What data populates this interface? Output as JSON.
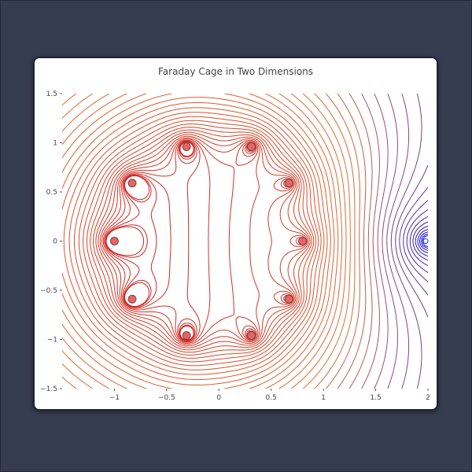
{
  "chart_data": {
    "type": "contour",
    "title": "Faraday Cage in Two Dimensions",
    "xlabel": "",
    "ylabel": "",
    "xlim": [
      -1.5,
      2.0
    ],
    "ylim": [
      -1.5,
      1.5
    ],
    "x_ticks": [
      -1,
      -0.5,
      0,
      0.5,
      1,
      1.5,
      2
    ],
    "x_tick_labels": [
      "−1",
      "−0.5",
      "0",
      "0.5",
      "1",
      "1.5",
      "2"
    ],
    "y_ticks": [
      -1.5,
      -1,
      -0.5,
      0,
      0.5,
      1,
      1.5
    ],
    "y_tick_labels": [
      "−1.5",
      "−1",
      "−0.5",
      "0",
      "0.5",
      "1",
      "1.5"
    ],
    "grid": false,
    "disks": {
      "count": 12,
      "ring_radius": 1.0,
      "ring_center": [
        -0.12,
        0.0
      ],
      "marker_color": "#f06060",
      "marker_edge": "#555555",
      "points": [
        [
          0.8,
          0.0
        ],
        [
          0.67,
          0.59
        ],
        [
          0.31,
          0.96
        ],
        [
          -0.31,
          0.96
        ],
        [
          -0.83,
          0.59
        ],
        [
          -1.0,
          0.0
        ],
        [
          -0.83,
          -0.59
        ],
        [
          -0.31,
          -0.96
        ],
        [
          0.31,
          -0.96
        ],
        [
          0.67,
          -0.59
        ],
        [
          0.8,
          0.0
        ],
        [
          -1.0,
          0.0
        ]
      ]
    },
    "source": {
      "x": 2.0,
      "y": 0.0,
      "marker_color": "#ffffff"
    },
    "contour_levels": 45,
    "color_scale": {
      "near_source": "#0000ee",
      "mid": "#e07030",
      "far": "#cc2222"
    }
  }
}
